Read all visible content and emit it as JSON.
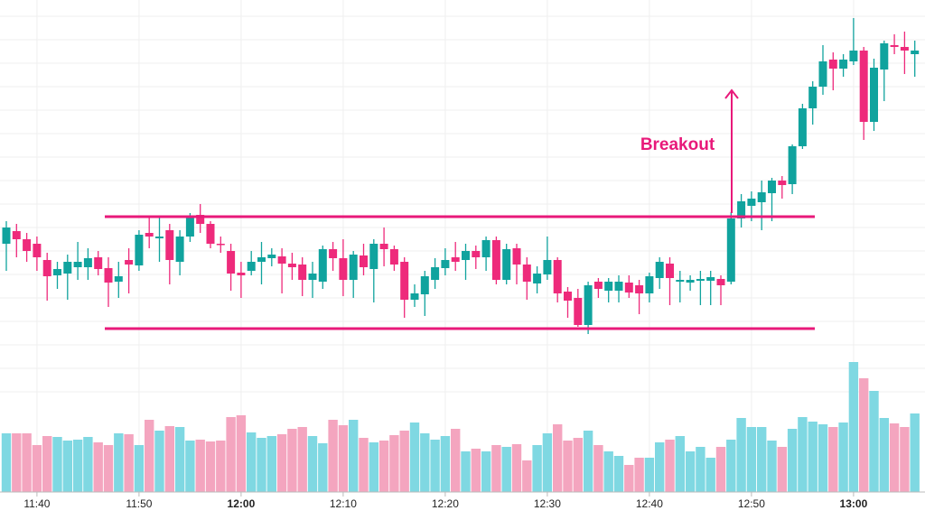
{
  "chart_data": {
    "type": "candlestick",
    "annotation": "Breakout",
    "categories": [
      null,
      null,
      null,
      "11:40",
      null,
      null,
      null,
      null,
      null,
      null,
      null,
      null,
      null,
      "11:50",
      null,
      null,
      null,
      null,
      null,
      null,
      null,
      null,
      null,
      "12:00",
      null,
      null,
      null,
      null,
      null,
      null,
      null,
      null,
      null,
      "12:10",
      null,
      null,
      null,
      null,
      null,
      null,
      null,
      null,
      null,
      "12:20",
      null,
      null,
      null,
      null,
      null,
      null,
      null,
      null,
      null,
      "12:30",
      null,
      null,
      null,
      null,
      null,
      null,
      null,
      null,
      null,
      "12:40",
      null,
      null,
      null,
      null,
      null,
      null,
      null,
      null,
      null,
      "12:50",
      null,
      null,
      null,
      null,
      null,
      null,
      null,
      null,
      null,
      "13:00",
      null,
      null,
      null,
      null,
      null,
      null
    ],
    "open": [
      294,
      308,
      299,
      294,
      276,
      259,
      261,
      268,
      268,
      279,
      267,
      252,
      276,
      270,
      306,
      300,
      309,
      274,
      302,
      326,
      316,
      294,
      286,
      262,
      264,
      274,
      278,
      280,
      272,
      271,
      254,
      252,
      288,
      278,
      254,
      281,
      266,
      294,
      288,
      274,
      232,
      238,
      254,
      267,
      279,
      276,
      286,
      279,
      298,
      254,
      289,
      271,
      250,
      260,
      276,
      241,
      234,
      204,
      252,
      242,
      242,
      251,
      248,
      239,
      256,
      272,
      252,
      251,
      253,
      253,
      255,
      252,
      322,
      336,
      340,
      350,
      364,
      360,
      402,
      444,
      468,
      498,
      488,
      496,
      508,
      429,
      487,
      514,
      512,
      504
    ],
    "high": [
      319,
      316,
      306,
      302,
      284,
      274,
      282,
      296,
      289,
      286,
      279,
      274,
      289,
      309,
      324,
      324,
      316,
      309,
      328,
      338,
      319,
      302,
      294,
      274,
      286,
      296,
      289,
      289,
      284,
      279,
      274,
      292,
      296,
      299,
      286,
      294,
      299,
      312,
      292,
      279,
      249,
      264,
      278,
      289,
      296,
      294,
      292,
      302,
      302,
      294,
      294,
      279,
      269,
      302,
      279,
      246,
      244,
      252,
      256,
      256,
      259,
      259,
      254,
      262,
      279,
      279,
      264,
      259,
      264,
      264,
      259,
      329,
      349,
      352,
      364,
      367,
      369,
      404,
      449,
      474,
      514,
      506,
      504,
      544,
      512,
      499,
      519,
      526,
      529,
      519
    ],
    "low": [
      264,
      279,
      274,
      264,
      231,
      244,
      232,
      254,
      254,
      259,
      224,
      234,
      239,
      264,
      289,
      274,
      249,
      259,
      296,
      306,
      289,
      284,
      242,
      234,
      259,
      249,
      269,
      239,
      254,
      236,
      234,
      244,
      264,
      236,
      234,
      259,
      229,
      269,
      264,
      212,
      224,
      214,
      244,
      259,
      264,
      254,
      266,
      264,
      249,
      249,
      249,
      232,
      239,
      254,
      229,
      212,
      202,
      194,
      234,
      229,
      229,
      234,
      216,
      229,
      244,
      226,
      229,
      242,
      226,
      226,
      226,
      249,
      312,
      319,
      309,
      319,
      344,
      349,
      399,
      426,
      459,
      464,
      479,
      492,
      409,
      419,
      452,
      504,
      482,
      479
    ],
    "close": [
      312,
      299,
      286,
      279,
      258,
      266,
      274,
      274,
      278,
      266,
      251,
      258,
      271,
      304,
      302,
      302,
      276,
      302,
      325,
      316,
      294,
      293,
      261,
      259,
      274,
      279,
      282,
      272,
      268,
      254,
      261,
      288,
      278,
      254,
      282,
      268,
      294,
      288,
      271,
      232,
      239,
      258,
      268,
      276,
      274,
      286,
      279,
      298,
      254,
      288,
      271,
      252,
      261,
      276,
      239,
      231,
      204,
      248,
      244,
      252,
      252,
      240,
      239,
      258,
      274,
      256,
      254,
      254,
      255,
      257,
      248,
      322,
      341,
      344,
      351,
      364,
      359,
      402,
      444,
      468,
      496,
      488,
      498,
      508,
      429,
      489,
      516,
      512,
      508,
      508
    ],
    "volume": [
      65,
      65,
      65,
      52,
      62,
      61,
      57,
      58,
      61,
      55,
      52,
      65,
      64,
      52,
      80,
      68,
      73,
      72,
      57,
      58,
      56,
      57,
      83,
      85,
      66,
      60,
      62,
      64,
      70,
      72,
      62,
      54,
      80,
      74,
      80,
      60,
      55,
      57,
      63,
      68,
      77,
      65,
      58,
      62,
      70,
      45,
      48,
      45,
      52,
      50,
      53,
      35,
      52,
      65,
      75,
      57,
      60,
      68,
      52,
      45,
      40,
      30,
      38,
      38,
      55,
      58,
      62,
      45,
      50,
      38,
      50,
      58,
      82,
      72,
      72,
      57,
      50,
      70,
      83,
      78,
      75,
      72,
      77,
      144,
      126,
      112,
      82,
      76,
      72,
      87
    ],
    "up_color": "#10a39e",
    "down_color": "#ee2a7b",
    "volume_up_color": "#7fd8e2",
    "volume_down_color": "#f4a5bf",
    "levels": [
      324,
      200
    ],
    "level_color": "#e8197a",
    "ylim": [
      0,
      564
    ],
    "yticks": [
      546,
      520,
      494,
      468,
      442,
      416,
      390,
      364,
      338,
      312,
      286,
      260,
      234,
      208,
      182,
      156,
      130
    ],
    "y2lim": [
      0,
      545
    ],
    "grid": true
  }
}
